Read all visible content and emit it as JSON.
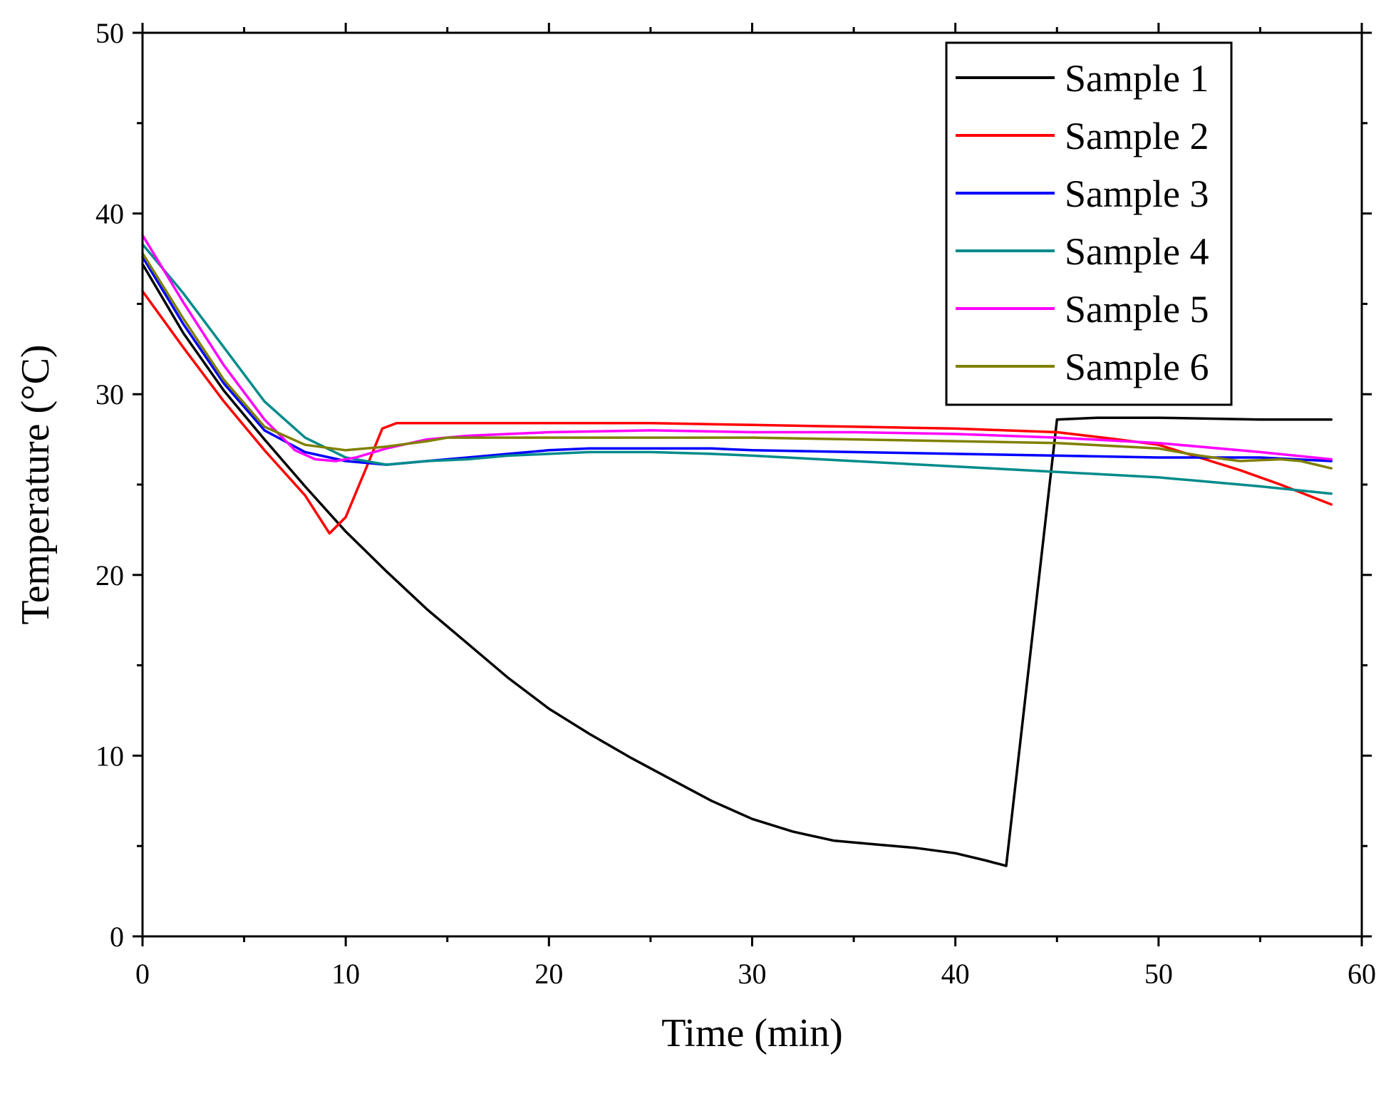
{
  "chart_data": {
    "type": "line",
    "title": "",
    "xlabel": "Time (min)",
    "ylabel": "Temperature (°C)",
    "xlim": [
      0,
      60
    ],
    "ylim": [
      0,
      50
    ],
    "xticks": [
      0,
      10,
      20,
      30,
      40,
      50,
      60
    ],
    "yticks": [
      0,
      10,
      20,
      30,
      40,
      50
    ],
    "xtick_labels": [
      "0",
      "10",
      "20",
      "30",
      "40",
      "50",
      "60"
    ],
    "ytick_labels": [
      "0",
      "10",
      "20",
      "30",
      "40",
      "50"
    ],
    "grid": false,
    "legend_position": "top-right",
    "series": [
      {
        "name": "Sample 1",
        "color": "#000000",
        "points": [
          [
            0,
            37.2
          ],
          [
            2,
            33.4
          ],
          [
            4,
            30.2
          ],
          [
            6,
            27.5
          ],
          [
            8,
            24.9
          ],
          [
            10,
            22.4
          ],
          [
            12,
            20.2
          ],
          [
            14,
            18.1
          ],
          [
            16,
            16.2
          ],
          [
            18,
            14.3
          ],
          [
            20,
            12.6
          ],
          [
            22,
            11.2
          ],
          [
            24,
            9.9
          ],
          [
            26,
            8.7
          ],
          [
            28,
            7.5
          ],
          [
            30,
            6.5
          ],
          [
            32,
            5.8
          ],
          [
            34,
            5.3
          ],
          [
            36,
            5.1
          ],
          [
            38,
            4.9
          ],
          [
            40,
            4.6
          ],
          [
            41.5,
            4.2
          ],
          [
            42.5,
            3.9
          ],
          [
            45,
            28.6
          ],
          [
            47,
            28.7
          ],
          [
            50,
            28.7
          ],
          [
            55,
            28.6
          ],
          [
            58.5,
            28.6
          ]
        ]
      },
      {
        "name": "Sample 2",
        "color": "#ff0000",
        "points": [
          [
            0,
            35.7
          ],
          [
            2,
            32.6
          ],
          [
            4,
            29.6
          ],
          [
            6,
            26.9
          ],
          [
            8,
            24.4
          ],
          [
            9.2,
            22.3
          ],
          [
            10,
            23.2
          ],
          [
            11,
            25.9
          ],
          [
            11.8,
            28.1
          ],
          [
            12.5,
            28.4
          ],
          [
            15,
            28.4
          ],
          [
            20,
            28.4
          ],
          [
            25,
            28.4
          ],
          [
            30,
            28.3
          ],
          [
            35,
            28.2
          ],
          [
            40,
            28.1
          ],
          [
            45,
            27.9
          ],
          [
            48,
            27.5
          ],
          [
            50,
            27.2
          ],
          [
            52,
            26.5
          ],
          [
            54,
            25.8
          ],
          [
            56,
            25.0
          ],
          [
            58.5,
            23.9
          ]
        ]
      },
      {
        "name": "Sample 3",
        "color": "#0000ff",
        "points": [
          [
            0,
            37.6
          ],
          [
            2,
            33.9
          ],
          [
            4,
            30.6
          ],
          [
            6,
            28.0
          ],
          [
            8,
            26.8
          ],
          [
            10,
            26.3
          ],
          [
            12,
            26.1
          ],
          [
            14,
            26.3
          ],
          [
            16,
            26.5
          ],
          [
            18,
            26.7
          ],
          [
            20,
            26.9
          ],
          [
            22,
            27.0
          ],
          [
            25,
            27.0
          ],
          [
            28,
            27.0
          ],
          [
            30,
            26.9
          ],
          [
            35,
            26.8
          ],
          [
            40,
            26.7
          ],
          [
            45,
            26.6
          ],
          [
            50,
            26.5
          ],
          [
            55,
            26.5
          ],
          [
            58.5,
            26.3
          ]
        ]
      },
      {
        "name": "Sample 4",
        "color": "#008b8b",
        "points": [
          [
            0,
            38.3
          ],
          [
            2,
            35.6
          ],
          [
            4,
            32.6
          ],
          [
            6,
            29.6
          ],
          [
            8,
            27.6
          ],
          [
            10,
            26.5
          ],
          [
            12,
            26.1
          ],
          [
            14,
            26.3
          ],
          [
            16,
            26.4
          ],
          [
            18,
            26.6
          ],
          [
            20,
            26.7
          ],
          [
            22,
            26.8
          ],
          [
            25,
            26.8
          ],
          [
            28,
            26.7
          ],
          [
            30,
            26.6
          ],
          [
            35,
            26.3
          ],
          [
            40,
            26.0
          ],
          [
            45,
            25.7
          ],
          [
            50,
            25.4
          ],
          [
            52,
            25.2
          ],
          [
            55,
            24.9
          ],
          [
            58.5,
            24.5
          ]
        ]
      },
      {
        "name": "Sample 5",
        "color": "#ff00ff",
        "points": [
          [
            0,
            38.8
          ],
          [
            2,
            35.1
          ],
          [
            4,
            31.6
          ],
          [
            6,
            28.6
          ],
          [
            7.5,
            26.9
          ],
          [
            8.5,
            26.4
          ],
          [
            9.5,
            26.3
          ],
          [
            10.5,
            26.5
          ],
          [
            12,
            27.0
          ],
          [
            14,
            27.5
          ],
          [
            16,
            27.7
          ],
          [
            18,
            27.8
          ],
          [
            20,
            27.9
          ],
          [
            25,
            28.0
          ],
          [
            30,
            27.9
          ],
          [
            35,
            27.9
          ],
          [
            40,
            27.8
          ],
          [
            45,
            27.6
          ],
          [
            50,
            27.3
          ],
          [
            55,
            26.8
          ],
          [
            58.5,
            26.4
          ]
        ]
      },
      {
        "name": "Sample 6",
        "color": "#808000",
        "points": [
          [
            0,
            37.8
          ],
          [
            2,
            34.2
          ],
          [
            4,
            30.8
          ],
          [
            6,
            28.2
          ],
          [
            8,
            27.2
          ],
          [
            10,
            26.9
          ],
          [
            12,
            27.1
          ],
          [
            14,
            27.4
          ],
          [
            15,
            27.6
          ],
          [
            17,
            27.6
          ],
          [
            20,
            27.6
          ],
          [
            25,
            27.6
          ],
          [
            30,
            27.6
          ],
          [
            35,
            27.5
          ],
          [
            40,
            27.4
          ],
          [
            45,
            27.3
          ],
          [
            50,
            27.0
          ],
          [
            52,
            26.6
          ],
          [
            54,
            26.3
          ],
          [
            56,
            26.4
          ],
          [
            57,
            26.3
          ],
          [
            58.5,
            25.9
          ]
        ]
      }
    ]
  }
}
